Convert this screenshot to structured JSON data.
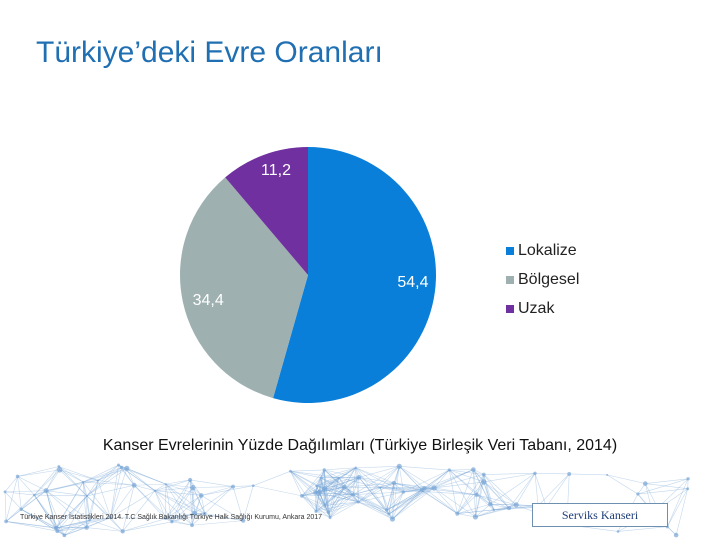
{
  "slide": {
    "title": "Türkiye’deki Evre Oranları",
    "caption": "Kanser Evrelerinin Yüzde Dağılımları (Türkiye Birleşik Veri Tabanı, 2014)",
    "source": "Türkiye Kanser İstatistikleri 2014. T.C Sağlık Bakanlığı Türkiye Halk Sağlığı Kurumu, Ankara 2017",
    "footer_label": "Serviks Kanseri"
  },
  "chart_data": {
    "type": "pie",
    "title": "",
    "legend_position": "right",
    "slices": [
      {
        "name": "Lokalize",
        "value": 54.4,
        "label": "54,4",
        "color": "#0a7fd9"
      },
      {
        "name": "Bölgesel",
        "value": 34.4,
        "label": "34,4",
        "color": "#9eb0b0"
      },
      {
        "name": "Uzak",
        "value": 11.2,
        "label": "11,2",
        "color": "#7030a0"
      }
    ]
  },
  "colors": {
    "title": "#1f6fb2",
    "background_network": "#7aa7d6"
  }
}
